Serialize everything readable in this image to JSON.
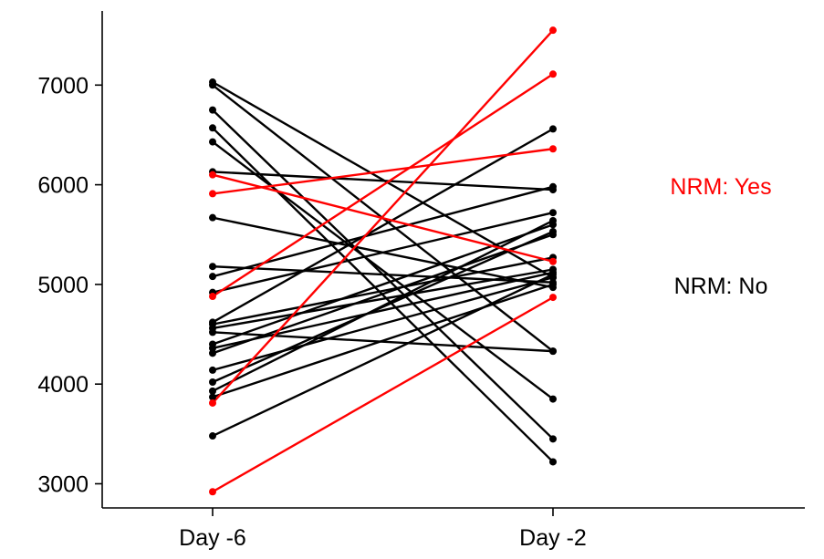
{
  "chart_data": {
    "type": "line",
    "title": "",
    "xlabel": "",
    "ylabel": "",
    "categories": [
      "Day -6",
      "Day -2"
    ],
    "ylim": [
      2850,
      7700
    ],
    "yticks": [
      3000,
      4000,
      5000,
      6000,
      7000
    ],
    "legend": {
      "placement": "right",
      "entries": [
        {
          "label": "NRM: Yes",
          "color": "#ff0000"
        },
        {
          "label": "NRM: No",
          "color": "#000000"
        }
      ]
    },
    "colors": {
      "yes": "#ff0000",
      "no": "#000000"
    },
    "series": [
      {
        "group": "no",
        "values": [
          7030,
          5070
        ]
      },
      {
        "group": "no",
        "values": [
          7000,
          4330
        ]
      },
      {
        "group": "no",
        "values": [
          6750,
          3450
        ]
      },
      {
        "group": "no",
        "values": [
          6570,
          3220
        ]
      },
      {
        "group": "no",
        "values": [
          6430,
          3850
        ]
      },
      {
        "group": "no",
        "values": [
          6130,
          5950
        ]
      },
      {
        "group": "no",
        "values": [
          5670,
          4970
        ]
      },
      {
        "group": "no",
        "values": [
          5180,
          5020
        ]
      },
      {
        "group": "no",
        "values": [
          5080,
          5980
        ]
      },
      {
        "group": "no",
        "values": [
          4920,
          5720
        ]
      },
      {
        "group": "no",
        "values": [
          4620,
          6560
        ]
      },
      {
        "group": "no",
        "values": [
          4600,
          5270
        ]
      },
      {
        "group": "no",
        "values": [
          4560,
          5150
        ]
      },
      {
        "group": "no",
        "values": [
          4520,
          4330
        ]
      },
      {
        "group": "no",
        "values": [
          4400,
          5600
        ]
      },
      {
        "group": "no",
        "values": [
          4360,
          5120
        ]
      },
      {
        "group": "no",
        "values": [
          4310,
          5500
        ]
      },
      {
        "group": "no",
        "values": [
          4140,
          5070
        ]
      },
      {
        "group": "no",
        "values": [
          4020,
          5530
        ]
      },
      {
        "group": "no",
        "values": [
          3930,
          5640
        ]
      },
      {
        "group": "no",
        "values": [
          3870,
          5000
        ]
      },
      {
        "group": "no",
        "values": [
          3480,
          5100
        ]
      },
      {
        "group": "yes",
        "values": [
          6100,
          5230
        ]
      },
      {
        "group": "yes",
        "values": [
          5910,
          6360
        ]
      },
      {
        "group": "yes",
        "values": [
          4880,
          7110
        ]
      },
      {
        "group": "yes",
        "values": [
          3810,
          7550
        ]
      },
      {
        "group": "yes",
        "values": [
          2920,
          4870
        ]
      }
    ]
  }
}
